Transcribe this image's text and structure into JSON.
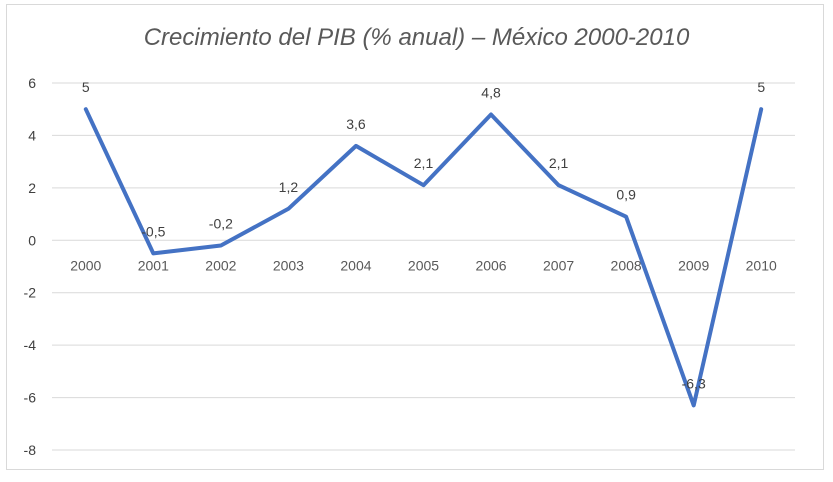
{
  "chart_data": {
    "type": "line",
    "title": "Crecimiento del PIB (% anual) – México 2000-2010",
    "xlabel": "",
    "ylabel": "",
    "ylim": [
      -8,
      6
    ],
    "yticks": [
      6,
      4,
      2,
      0,
      -2,
      -4,
      -6,
      -8
    ],
    "grid": true,
    "legend": "none",
    "categories": [
      "2000",
      "2001",
      "2002",
      "2003",
      "2004",
      "2005",
      "2006",
      "2007",
      "2008",
      "2009",
      "2010"
    ],
    "series": [
      {
        "color": "#4472c4",
        "values": [
          5,
          -0.5,
          -0.2,
          1.2,
          3.6,
          2.1,
          4.8,
          2.1,
          0.9,
          -6.3,
          5
        ],
        "data_labels": [
          "5",
          "-0,5",
          "-0,2",
          "1,2",
          "3,6",
          "2,1",
          "4,8",
          "2,1",
          "0,9",
          "-6,3",
          "5"
        ]
      }
    ]
  }
}
